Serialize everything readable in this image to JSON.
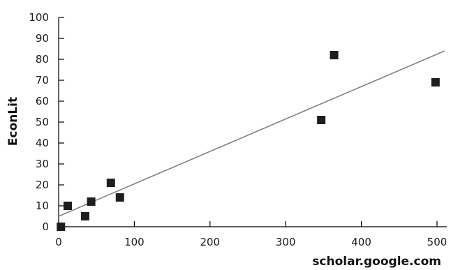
{
  "chart_data": {
    "type": "scatter",
    "title": "",
    "xlabel": "scholar.google.com",
    "ylabel": "EconLit",
    "xlim": [
      0,
      500
    ],
    "ylim": [
      0,
      100
    ],
    "xticks": [
      0,
      100,
      200,
      300,
      400,
      500
    ],
    "yticks": [
      0,
      10,
      20,
      30,
      40,
      50,
      60,
      70,
      80,
      90,
      100
    ],
    "grid": false,
    "legend": "none",
    "marker": "square",
    "colors": {
      "marker": "#1e1e1e",
      "trendline": "#808080",
      "axis": "#000000"
    },
    "points": [
      {
        "x": 3,
        "y": 0
      },
      {
        "x": 12,
        "y": 10
      },
      {
        "x": 35,
        "y": 5
      },
      {
        "x": 43,
        "y": 12
      },
      {
        "x": 69,
        "y": 21
      },
      {
        "x": 81,
        "y": 14
      },
      {
        "x": 347,
        "y": 51
      },
      {
        "x": 364,
        "y": 82
      },
      {
        "x": 498,
        "y": 69
      }
    ],
    "trendline": {
      "x": [
        0,
        510
      ],
      "y": [
        5,
        84
      ]
    }
  }
}
